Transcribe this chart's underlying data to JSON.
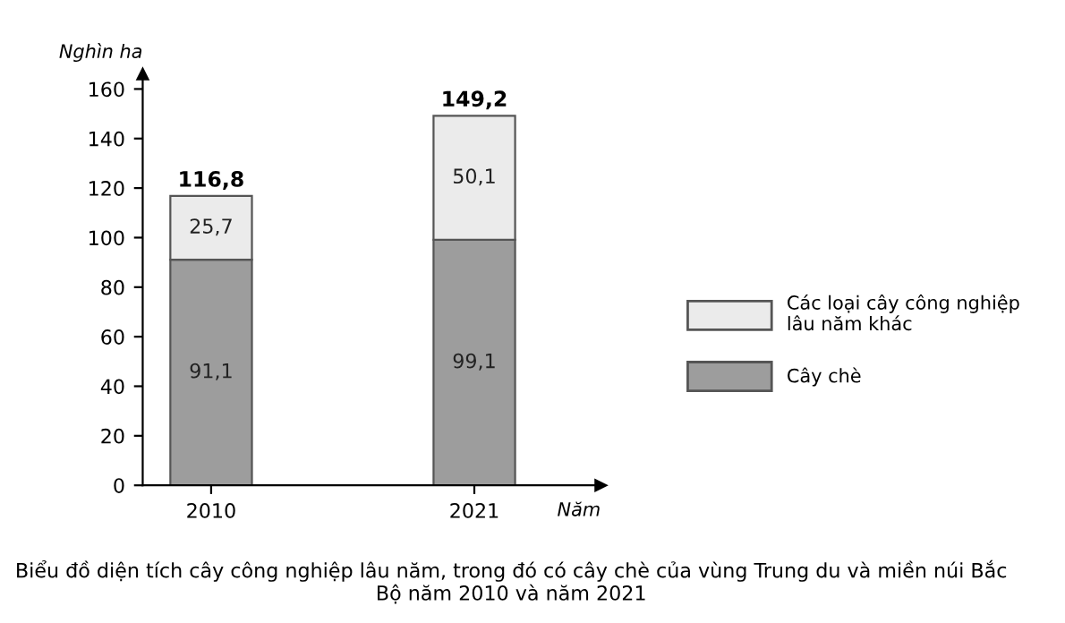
{
  "chart_data": {
    "type": "bar",
    "stacked": true,
    "title": "Biểu đồ diện tích cây công nghiệp lâu năm, trong đó có cây chè của vùng Trung du và miền núi Bắc Bộ năm 2010 và năm 2021",
    "xlabel": "Năm",
    "ylabel": "Nghìn ha",
    "categories": [
      "2010",
      "2021"
    ],
    "series": [
      {
        "name": "Cây chè",
        "color": "#9d9d9d",
        "values": [
          91.1,
          99.1
        ],
        "value_labels": [
          "91,1",
          "99,1"
        ]
      },
      {
        "name": "Các loại cây công nghiệp lâu năm khác",
        "color": "#ebebeb",
        "values": [
          25.7,
          50.1
        ],
        "value_labels": [
          "25,7",
          "50,1"
        ]
      }
    ],
    "totals": [
      "116,8",
      "149,2"
    ],
    "ylim": [
      0,
      166
    ],
    "yticks": [
      0,
      20,
      40,
      60,
      80,
      100,
      120,
      140,
      160
    ],
    "grid": false,
    "legend": "right"
  }
}
